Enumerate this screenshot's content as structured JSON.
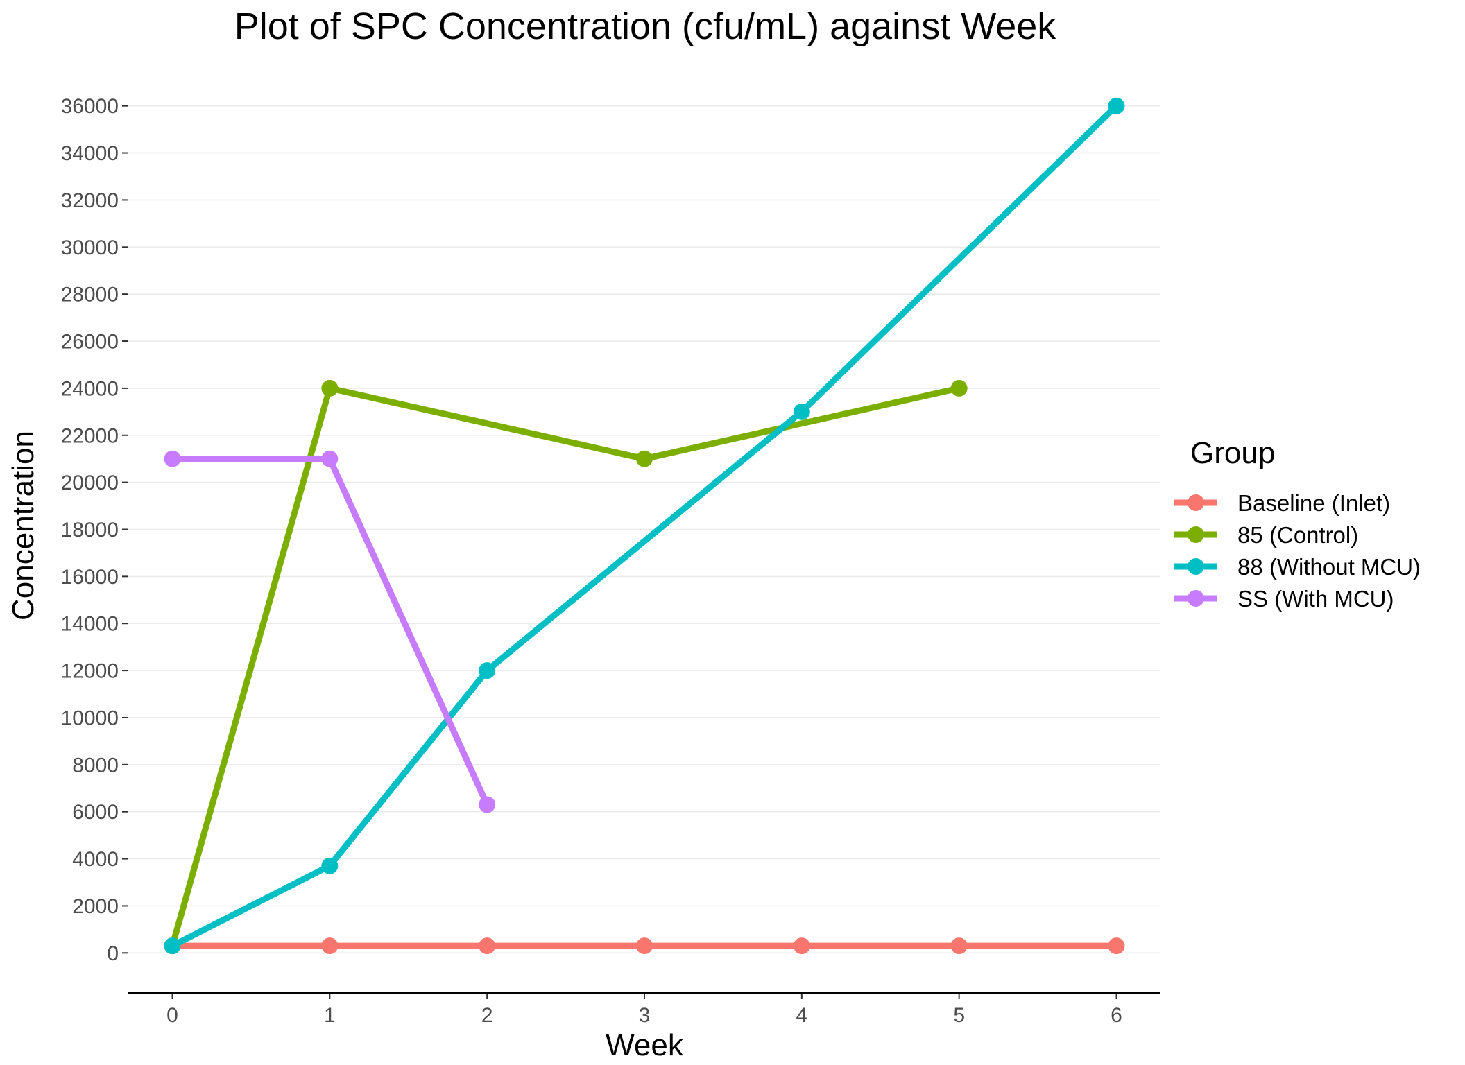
{
  "chart_data": {
    "type": "line",
    "title": "Plot of SPC Concentration (cfu/mL) against Week",
    "xlabel": "Week",
    "ylabel": "Concentration",
    "x_ticks": [
      0,
      1,
      2,
      3,
      4,
      5,
      6
    ],
    "y_ticks": [
      0,
      2000,
      4000,
      6000,
      8000,
      10000,
      12000,
      14000,
      16000,
      18000,
      20000,
      22000,
      24000,
      26000,
      28000,
      30000,
      32000,
      34000,
      36000
    ],
    "xlim": [
      -0.28,
      6.28
    ],
    "ylim": [
      -1700,
      37700
    ],
    "grid": true,
    "legend": {
      "title": "Group",
      "position": "right"
    },
    "series": [
      {
        "name": "Baseline (Inlet)",
        "color": "#F8766D",
        "x": [
          0,
          1,
          2,
          3,
          4,
          5,
          6
        ],
        "y": [
          300,
          300,
          300,
          300,
          300,
          300,
          300
        ]
      },
      {
        "name": "85 (Control)",
        "color": "#7CAE00",
        "x": [
          0,
          1,
          3,
          5
        ],
        "y": [
          300,
          24000,
          21000,
          24000
        ]
      },
      {
        "name": "88 (Without MCU)",
        "color": "#00BFC4",
        "x": [
          0,
          1,
          2,
          4,
          6
        ],
        "y": [
          300,
          3700,
          12000,
          23000,
          36000
        ]
      },
      {
        "name": "SS (With MCU)",
        "color": "#C77CFF",
        "x": [
          0,
          1,
          2
        ],
        "y": [
          21000,
          21000,
          6300
        ]
      }
    ]
  }
}
